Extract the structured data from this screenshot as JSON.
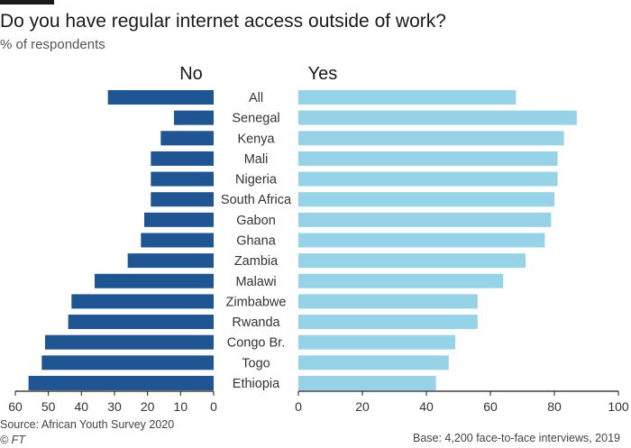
{
  "header": {
    "title": "Do you have regular internet access outside of work?",
    "subtitle": "% of respondents"
  },
  "footer": {
    "source": "Source: African Youth Survey 2020",
    "credit": "© FT",
    "base": "Base: 4,200 face-to-face interviews, 2019"
  },
  "colors": {
    "no": "#1f5592",
    "yes": "#96d3e8",
    "axis": "#1a1a1a"
  },
  "chart_data": {
    "type": "bar",
    "title": "Do you have regular internet access outside of work?",
    "subtitle": "% of respondents",
    "categories": [
      "All",
      "Senegal",
      "Kenya",
      "Mali",
      "Nigeria",
      "South Africa",
      "Gabon",
      "Ghana",
      "Zambia",
      "Malawi",
      "Zimbabwe",
      "Rwanda",
      "Congo Br.",
      "Togo",
      "Ethiopia"
    ],
    "series": [
      {
        "name": "No",
        "values": [
          32,
          12,
          16,
          19,
          19,
          19,
          21,
          22,
          26,
          36,
          43,
          44,
          51,
          52,
          56
        ],
        "xlim": [
          0,
          60
        ],
        "direction": "left"
      },
      {
        "name": "Yes",
        "values": [
          68,
          87,
          83,
          81,
          81,
          80,
          79,
          77,
          71,
          64,
          56,
          56,
          49,
          47,
          43
        ],
        "xlim": [
          0,
          100
        ],
        "direction": "right"
      }
    ],
    "no_ticks": [
      60,
      50,
      40,
      30,
      20,
      10,
      0
    ],
    "yes_ticks": [
      0,
      20,
      40,
      60,
      80,
      100
    ],
    "grid": false,
    "legend": "top"
  }
}
